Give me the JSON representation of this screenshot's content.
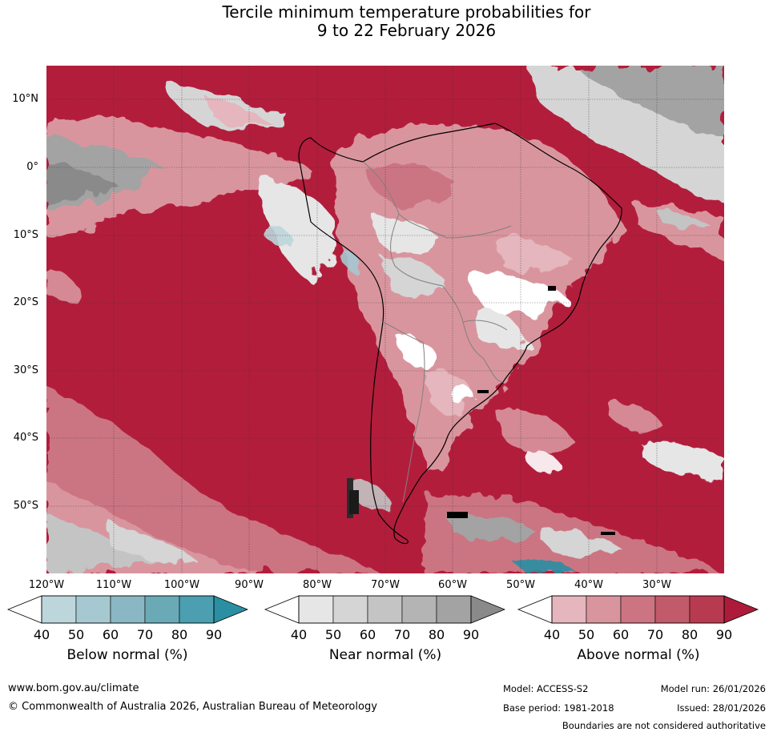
{
  "title": {
    "line1": "Tercile minimum temperature probabilities for",
    "line2": "9 to 22 February 2026"
  },
  "map": {
    "region": "South America and adjacent oceans",
    "lat_labels": [
      "10°N",
      "0°",
      "10°S",
      "20°S",
      "30°S",
      "40°S",
      "50°S"
    ],
    "lon_labels": [
      "120°W",
      "110°W",
      "100°W",
      "90°W",
      "80°W",
      "70°W",
      "60°W",
      "50°W",
      "40°W",
      "30°W"
    ]
  },
  "colorbars": {
    "below": {
      "title": "Below normal (%)",
      "ticks": [
        "40",
        "50",
        "60",
        "70",
        "80",
        "90"
      ],
      "colors": [
        "#bcd6dc",
        "#a6c9d1",
        "#8ab7c3",
        "#6aaab7",
        "#4b9fb0",
        "#2a8fa3"
      ],
      "low_color": "#ffffff"
    },
    "near": {
      "title": "Near normal (%)",
      "ticks": [
        "40",
        "50",
        "60",
        "70",
        "80",
        "90"
      ],
      "colors": [
        "#e6e6e6",
        "#d5d5d5",
        "#c4c4c4",
        "#b4b4b4",
        "#a3a3a3",
        "#8a8a8a"
      ],
      "low_color": "#ffffff"
    },
    "above": {
      "title": "Above normal (%)",
      "ticks": [
        "40",
        "50",
        "60",
        "70",
        "80",
        "90"
      ],
      "colors": [
        "#e5b6bd",
        "#d9959e",
        "#cc7482",
        "#c15a6a",
        "#b83a50",
        "#ae1b3a"
      ],
      "low_color": "#ffffff"
    }
  },
  "footer": {
    "website": "www.bom.gov.au/climate",
    "copyright": "© Commonwealth of Australia 2026, Australian Bureau of Meteorology",
    "model": "Model: ACCESS-S2",
    "base_period": "Base period: 1981-2018",
    "model_run": "Model run: 26/01/2026",
    "issued": "Issued: 28/01/2026",
    "disclaimer": "Boundaries are not considered authoritative"
  }
}
